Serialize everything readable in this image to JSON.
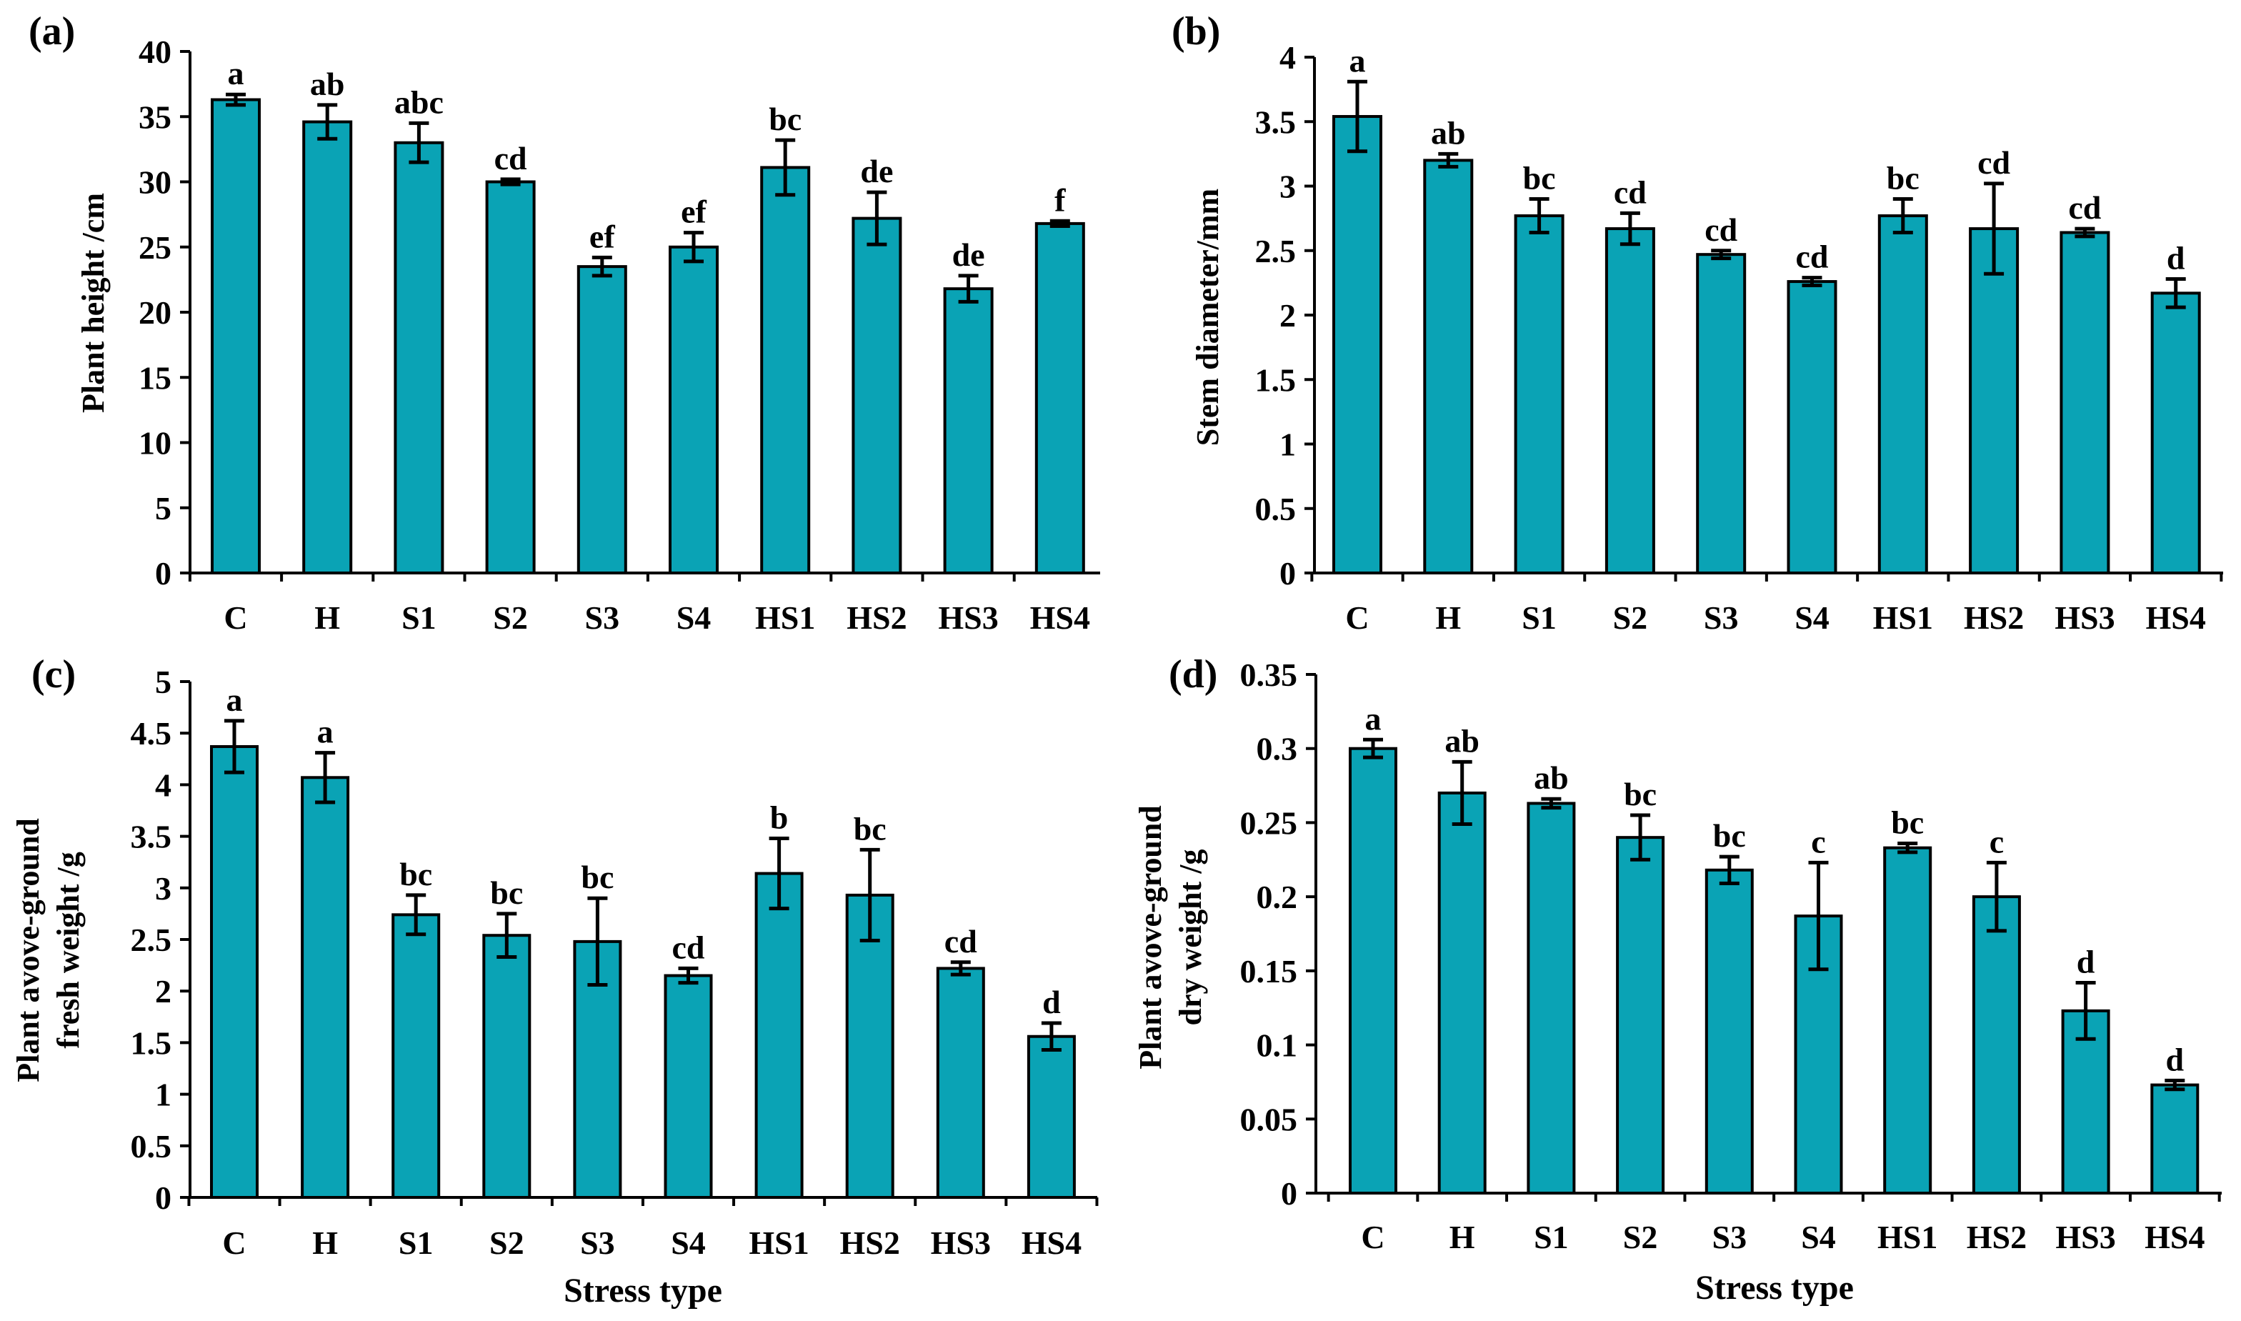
{
  "bar_color": "#0aa3b5",
  "chart_data": [
    {
      "type": "bar",
      "title": "(a)",
      "xlabel": "",
      "ylabel": [
        "Plant height /cm"
      ],
      "ylim": [
        0,
        40
      ],
      "yticks": [
        "0",
        "5",
        "10",
        "15",
        "20",
        "25",
        "30",
        "35",
        "40"
      ],
      "categories": [
        "C",
        "H",
        "S1",
        "S2",
        "S3",
        "S4",
        "HS1",
        "HS2",
        "HS3",
        "HS4"
      ],
      "values": [
        36.3,
        34.6,
        33.0,
        30.0,
        23.5,
        25.0,
        31.1,
        27.2,
        21.8,
        26.8
      ],
      "errors": [
        0.4,
        1.3,
        1.5,
        0.2,
        0.7,
        1.1,
        2.1,
        2.0,
        1.0,
        0.2
      ],
      "letters": [
        "a",
        "ab",
        "abc",
        "cd",
        "ef",
        "ef",
        "bc",
        "de",
        "de",
        "f"
      ]
    },
    {
      "type": "bar",
      "title": "(b)",
      "xlabel": "",
      "ylabel": [
        "Stem diameter/mm"
      ],
      "ylim": [
        0,
        4
      ],
      "yticks": [
        "0",
        "0.5",
        "1",
        "1.5",
        "2",
        "2.5",
        "3",
        "3.5",
        "4"
      ],
      "categories": [
        "C",
        "H",
        "S1",
        "S2",
        "S3",
        "S4",
        "HS1",
        "HS2",
        "HS3",
        "HS4"
      ],
      "values": [
        3.54,
        3.2,
        2.77,
        2.67,
        2.47,
        2.26,
        2.77,
        2.67,
        2.64,
        2.17
      ],
      "errors": [
        0.27,
        0.05,
        0.13,
        0.12,
        0.03,
        0.03,
        0.13,
        0.35,
        0.03,
        0.11
      ],
      "letters": [
        "a",
        "ab",
        "bc",
        "cd",
        "cd",
        "cd",
        "bc",
        "cd",
        "cd",
        "d"
      ]
    },
    {
      "type": "bar",
      "title": "(c)",
      "xlabel": "Stress type",
      "ylabel": [
        "Plant avove-ground",
        "fresh weight /g"
      ],
      "ylim": [
        0,
        5
      ],
      "yticks": [
        "0",
        "0.5",
        "1",
        "1.5",
        "2",
        "2.5",
        "3",
        "3.5",
        "4",
        "4.5",
        "5"
      ],
      "categories": [
        "C",
        "H",
        "S1",
        "S2",
        "S3",
        "S4",
        "HS1",
        "HS2",
        "HS3",
        "HS4"
      ],
      "values": [
        4.37,
        4.07,
        2.74,
        2.54,
        2.48,
        2.15,
        3.14,
        2.93,
        2.22,
        1.56
      ],
      "errors": [
        0.25,
        0.24,
        0.19,
        0.21,
        0.42,
        0.07,
        0.34,
        0.44,
        0.06,
        0.13
      ],
      "letters": [
        "a",
        "a",
        "bc",
        "bc",
        "bc",
        "cd",
        "b",
        "bc",
        "cd",
        "d"
      ]
    },
    {
      "type": "bar",
      "title": "(d)",
      "xlabel": "Stress type",
      "ylabel": [
        "Plant avove-ground",
        "dry weight /g"
      ],
      "ylim": [
        0,
        0.35
      ],
      "yticks": [
        "0",
        "0.05",
        "0.1",
        "0.15",
        "0.2",
        "0.25",
        "0.3",
        "0.35"
      ],
      "categories": [
        "C",
        "H",
        "S1",
        "S2",
        "S3",
        "S4",
        "HS1",
        "HS2",
        "HS3",
        "HS4"
      ],
      "values": [
        0.3,
        0.27,
        0.263,
        0.24,
        0.218,
        0.187,
        0.233,
        0.2,
        0.123,
        0.073
      ],
      "errors": [
        0.006,
        0.021,
        0.003,
        0.015,
        0.009,
        0.036,
        0.003,
        0.023,
        0.019,
        0.003
      ],
      "letters": [
        "a",
        "ab",
        "ab",
        "bc",
        "bc",
        "c",
        "bc",
        "c",
        "d",
        "d"
      ]
    }
  ]
}
